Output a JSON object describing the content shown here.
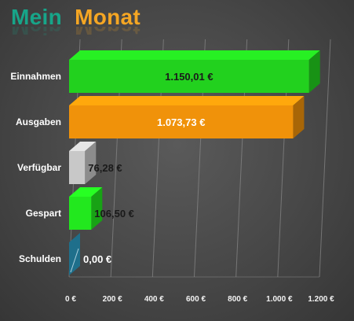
{
  "title": {
    "part1": "Mein",
    "part2": "Monat",
    "part1_color": "#17a589",
    "part2_color": "#f5a623"
  },
  "chart_data": {
    "type": "bar",
    "orientation": "horizontal",
    "style": "3d",
    "categories": [
      "Einnahmen",
      "Ausgaben",
      "Verfügbar",
      "Gespart",
      "Schulden"
    ],
    "values": [
      1150.01,
      1073.73,
      76.28,
      106.5,
      0.0
    ],
    "value_labels": [
      "1.150,01 €",
      "1.073,73 €",
      "76,28 €",
      "106,50 €",
      "0,00 €"
    ],
    "colors": [
      "#22d11e",
      "#f0920a",
      "#c8c8c8",
      "#22e81e",
      "#1f6f8b"
    ],
    "xlim": [
      0,
      1200
    ],
    "xticks": [
      0,
      200,
      400,
      600,
      800,
      1000,
      1200
    ],
    "xtick_labels": [
      "0 €",
      "200 €",
      "400 €",
      "600 €",
      "800 €",
      "1.000 €",
      "1.200 €"
    ],
    "grid": true
  }
}
